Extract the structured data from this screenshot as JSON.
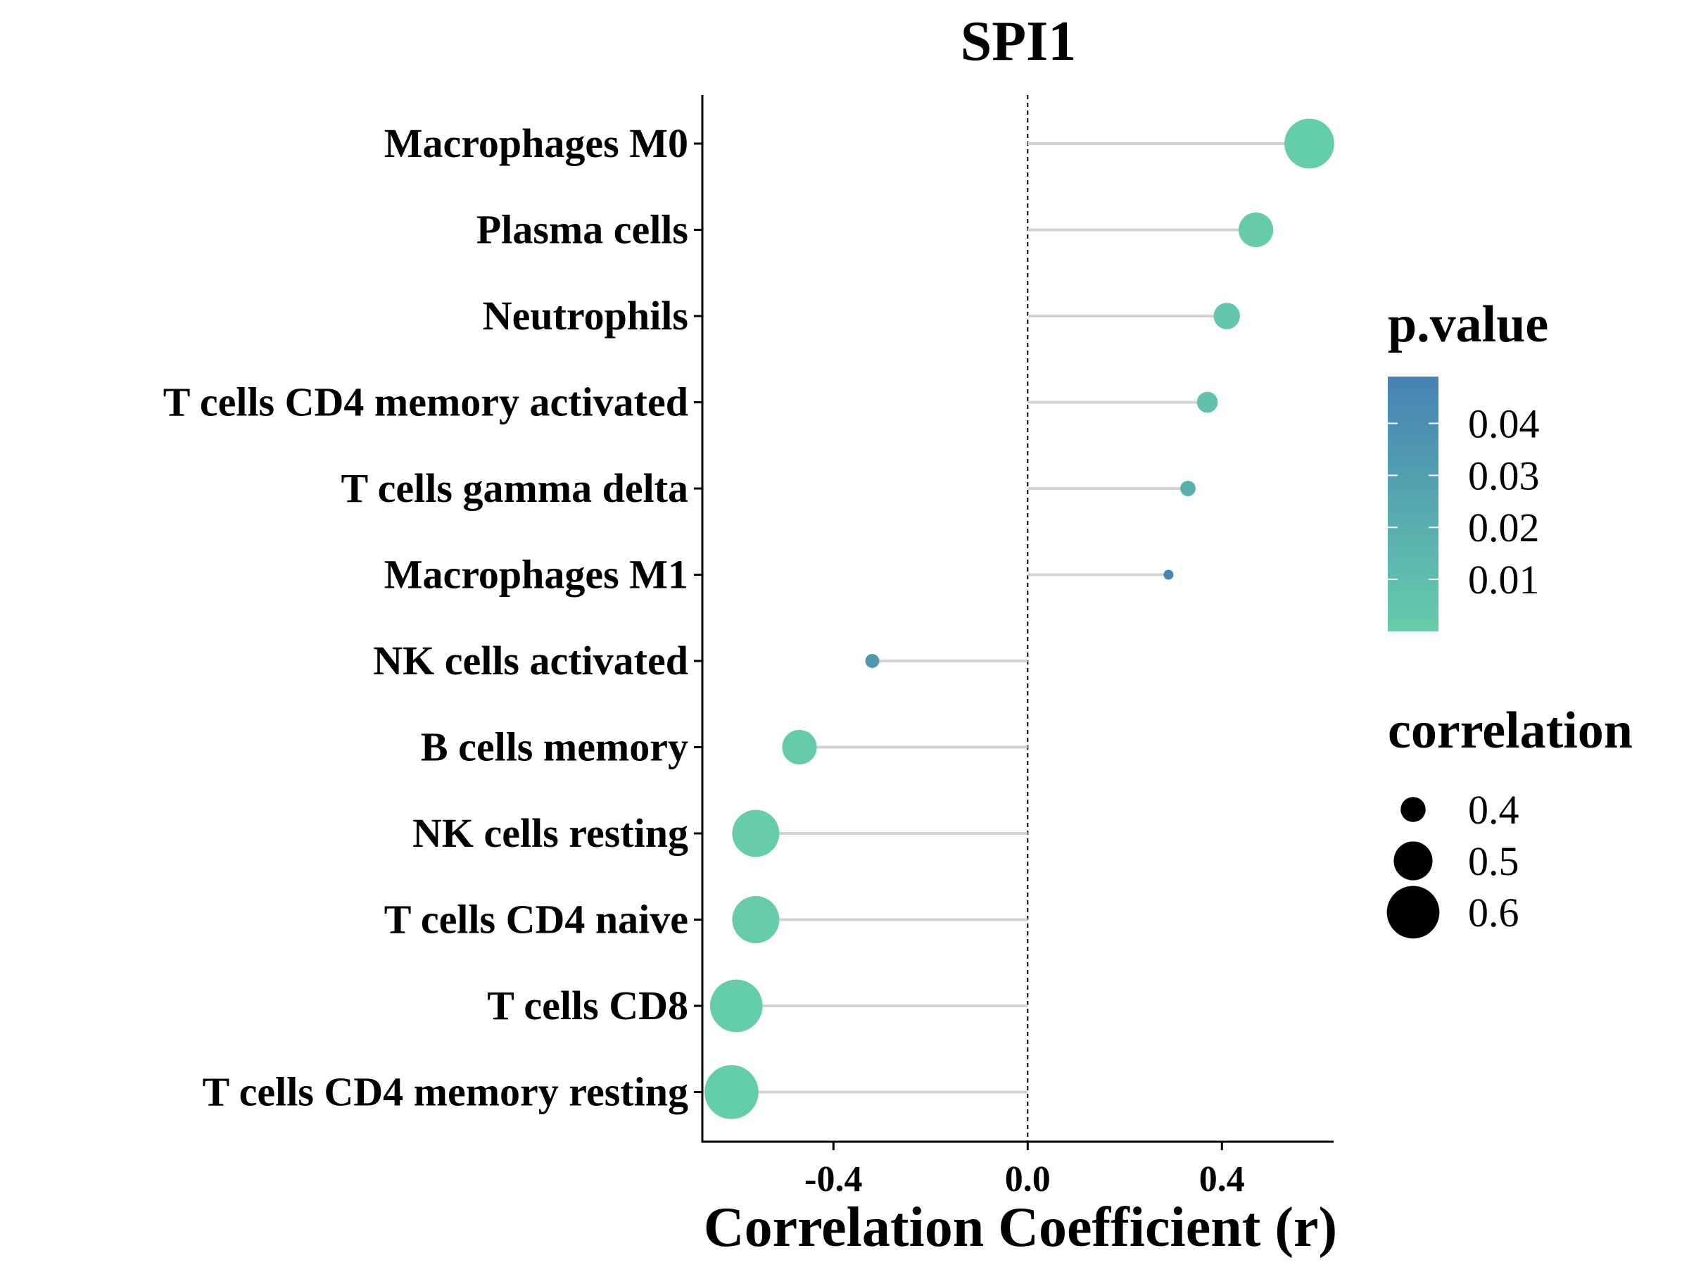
{
  "chart_data": {
    "type": "lollipop",
    "title": "SPI1",
    "xlabel": "Correlation Coefficient (r)",
    "ylabel": "",
    "xlim": [
      -0.67,
      0.63
    ],
    "xticks": [
      -0.4,
      0.0,
      0.4
    ],
    "xtick_labels": [
      "-0.4",
      "0.0",
      "0.4"
    ],
    "reference_line_x": 0,
    "categories": [
      "Macrophages M0",
      "Plasma cells",
      "Neutrophils",
      "T cells CD4 memory activated",
      "T cells gamma delta",
      "Macrophages M1",
      "NK cells activated",
      "B cells memory",
      "NK cells resting",
      "T cells CD4 naive",
      "T cells CD8",
      "T cells CD4 memory resting"
    ],
    "values": [
      0.58,
      0.47,
      0.41,
      0.37,
      0.33,
      0.29,
      -0.32,
      -0.47,
      -0.56,
      -0.56,
      -0.6,
      -0.61
    ],
    "p_values": [
      0.0001,
      0.001,
      0.004,
      0.008,
      0.02,
      0.047,
      0.035,
      0.002,
      0.0005,
      0.0005,
      0.0001,
      0.0001
    ],
    "color_legend": {
      "title": "p.value",
      "ticks": [
        0.04,
        0.03,
        0.02,
        0.01
      ],
      "tick_labels": [
        "0.04",
        "0.03",
        "0.02",
        "0.01"
      ],
      "range": [
        0.0,
        0.049
      ],
      "low_color": "#66CDAA",
      "high_color": "#4682B4"
    },
    "size_legend": {
      "title": "correlation",
      "values": [
        0.4,
        0.5,
        0.6
      ],
      "labels": [
        "0.4",
        "0.5",
        "0.6"
      ]
    },
    "colors": {
      "segment": "#D3D3D3",
      "axis": "#000000",
      "reference_line": "#000000",
      "legend_point": "#000000"
    }
  }
}
